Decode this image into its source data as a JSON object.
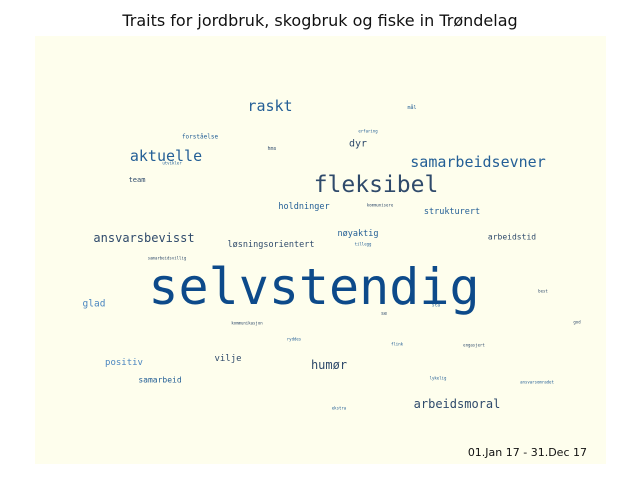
{
  "title": "Traits for jordbruk, skogbruk og fiske in Trøndelag",
  "period": "01.Jan 17 - 31.Dec 17",
  "colors": {
    "panel": "#fefeed",
    "dark_blue": "#0d4a8a",
    "mid_blue": "#245f96",
    "slate": "#2f4a6b",
    "light_blue": "#4b86c0"
  },
  "chart_data": {
    "type": "wordcloud",
    "title": "Traits for jordbruk, skogbruk og fiske in Trøndelag",
    "words": [
      {
        "text": "selvstendig",
        "weight": 100,
        "color": "dark_blue"
      },
      {
        "text": "fleksibel",
        "weight": 46,
        "color": "slate"
      },
      {
        "text": "raskt",
        "weight": 30,
        "color": "mid_blue"
      },
      {
        "text": "aktuelle",
        "weight": 30,
        "color": "mid_blue"
      },
      {
        "text": "samarbeidsevner",
        "weight": 30,
        "color": "mid_blue"
      },
      {
        "text": "ansvarsbevisst",
        "weight": 24,
        "color": "slate"
      },
      {
        "text": "arbeidsmoral",
        "weight": 24,
        "color": "slate"
      },
      {
        "text": "humør",
        "weight": 24,
        "color": "slate"
      },
      {
        "text": "dyr",
        "weight": 20,
        "color": "slate"
      },
      {
        "text": "glad",
        "weight": 19,
        "color": "light_blue"
      },
      {
        "text": "positiv",
        "weight": 18,
        "color": "light_blue"
      },
      {
        "text": "vilje",
        "weight": 18,
        "color": "slate"
      },
      {
        "text": "løsningsorientert",
        "weight": 17,
        "color": "slate"
      },
      {
        "text": "strukturert",
        "weight": 17,
        "color": "mid_blue"
      },
      {
        "text": "holdninger",
        "weight": 17,
        "color": "mid_blue"
      },
      {
        "text": "nøyaktig",
        "weight": 17,
        "color": "mid_blue"
      },
      {
        "text": "arbeidstid",
        "weight": 16,
        "color": "slate"
      },
      {
        "text": "samarbeid",
        "weight": 16,
        "color": "mid_blue"
      },
      {
        "text": "team",
        "weight": 14,
        "color": "slate"
      },
      {
        "text": "forståelse",
        "weight": 12,
        "color": "mid_blue"
      },
      {
        "text": "hms",
        "weight": 10,
        "color": "slate"
      },
      {
        "text": "mål",
        "weight": 10,
        "color": "mid_blue"
      },
      {
        "text": "se",
        "weight": 10,
        "color": "slate"
      },
      {
        "text": "stå",
        "weight": 9,
        "color": "mid_blue"
      },
      {
        "text": "erfaring",
        "weight": 7,
        "color": "mid_blue"
      },
      {
        "text": "utvikler",
        "weight": 7,
        "color": "mid_blue"
      },
      {
        "text": "kommunisere",
        "weight": 6,
        "color": "slate"
      },
      {
        "text": "tillegg",
        "weight": 6,
        "color": "mid_blue"
      },
      {
        "text": "samarbeidsvillig",
        "weight": 5,
        "color": "slate"
      },
      {
        "text": "kommunikasjon",
        "weight": 6,
        "color": "slate"
      },
      {
        "text": "ryddes",
        "weight": 6,
        "color": "mid_blue"
      },
      {
        "text": "flink",
        "weight": 6,
        "color": "mid_blue"
      },
      {
        "text": "engasjert",
        "weight": 6,
        "color": "slate"
      },
      {
        "text": "lykelig",
        "weight": 6,
        "color": "mid_blue"
      },
      {
        "text": "ansvarsomradet",
        "weight": 6,
        "color": "mid_blue"
      },
      {
        "text": "best",
        "weight": 6,
        "color": "slate"
      },
      {
        "text": "god",
        "weight": 6,
        "color": "slate"
      },
      {
        "text": "ekstra",
        "weight": 6,
        "color": "mid_blue"
      }
    ]
  }
}
